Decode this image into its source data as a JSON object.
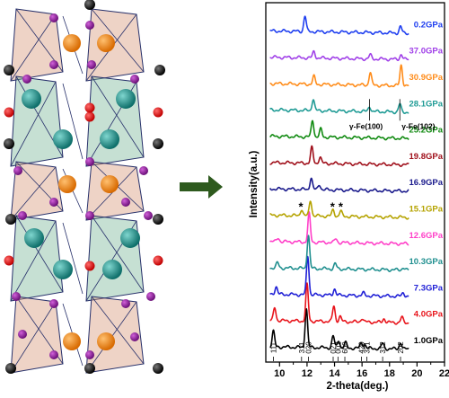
{
  "chart_data": {
    "type": "line",
    "xlabel": "2-theta(deg.)",
    "ylabel": "Intensity(a.u.)",
    "xlim": [
      9,
      22
    ],
    "x_ticks": [
      10,
      12,
      14,
      16,
      18,
      20,
      22
    ],
    "series": [
      {
        "name": "1.0GPa",
        "color": "#000000",
        "offset": 0,
        "peaks": [
          [
            9.55,
            12
          ],
          [
            11.95,
            30
          ],
          [
            13.9,
            9
          ],
          [
            14.3,
            6
          ],
          [
            14.8,
            4
          ],
          [
            15.95,
            4
          ],
          [
            16.2,
            3
          ],
          [
            17.5,
            4
          ],
          [
            18.8,
            5
          ]
        ]
      },
      {
        "name": "4.0GPa",
        "color": "#e8141b",
        "offset": 1,
        "peaks": [
          [
            9.65,
            10
          ],
          [
            12.0,
            28
          ],
          [
            13.95,
            12
          ],
          [
            14.4,
            4
          ],
          [
            16.0,
            3
          ],
          [
            17.6,
            3
          ],
          [
            18.9,
            4
          ]
        ]
      },
      {
        "name": "7.3GPa",
        "color": "#1f1fd6",
        "offset": 2,
        "peaks": [
          [
            9.75,
            6
          ],
          [
            12.05,
            30
          ],
          [
            14.0,
            5
          ],
          [
            16.1,
            2
          ],
          [
            19.0,
            3
          ]
        ]
      },
      {
        "name": "10.3GPa",
        "color": "#1f8f8f",
        "offset": 3,
        "peaks": [
          [
            9.85,
            4
          ],
          [
            12.1,
            26
          ],
          [
            14.05,
            4
          ],
          [
            19.0,
            2
          ]
        ]
      },
      {
        "name": "12.6GPa",
        "color": "#ff3fc8",
        "offset": 4,
        "peaks": [
          [
            9.9,
            3
          ],
          [
            12.15,
            22
          ],
          [
            14.1,
            3
          ]
        ]
      },
      {
        "name": "15.1GPa",
        "color": "#b5a300",
        "offset": 5,
        "peaks": [
          [
            11.6,
            5
          ],
          [
            12.25,
            12
          ],
          [
            13.9,
            5
          ],
          [
            14.45,
            4
          ]
        ]
      },
      {
        "name": "16.9GPa",
        "color": "#1a1a8c",
        "offset": 6,
        "peaks": [
          [
            12.3,
            9
          ],
          [
            12.9,
            4
          ]
        ]
      },
      {
        "name": "19.8GPa",
        "color": "#a0101b",
        "offset": 7,
        "peaks": [
          [
            12.35,
            12
          ],
          [
            12.95,
            5
          ]
        ]
      },
      {
        "name": "25.2GPa",
        "color": "#108a10",
        "offset": 8,
        "peaks": [
          [
            12.4,
            13
          ],
          [
            13.0,
            6
          ]
        ]
      },
      {
        "name": "28.1GPa",
        "color": "#1f9b95",
        "offset": 9,
        "peaks": [
          [
            12.45,
            9
          ],
          [
            16.55,
            4
          ],
          [
            18.75,
            6
          ]
        ]
      },
      {
        "name": "30.9GPa",
        "color": "#ff8c1a",
        "offset": 10,
        "peaks": [
          [
            12.5,
            6
          ],
          [
            16.6,
            10
          ],
          [
            18.85,
            16
          ]
        ]
      },
      {
        "name": "37.0GPa",
        "color": "#a040e8",
        "offset": 11,
        "peaks": [
          [
            12.5,
            5
          ],
          [
            16.6,
            3
          ],
          [
            18.85,
            4
          ]
        ]
      },
      {
        "name": "0.2GPa",
        "color": "#1f3ff0",
        "offset": 12,
        "peaks": [
          [
            11.85,
            12
          ],
          [
            18.8,
            5
          ]
        ]
      }
    ],
    "hkl_labels": [
      {
        "text": "111",
        "x": 9.55
      },
      {
        "text": "311",
        "x": 11.6
      },
      {
        "text": "020",
        "x": 12.1
      },
      {
        "text": "021",
        "x": 13.9
      },
      {
        "text": "002",
        "x": 14.25
      },
      {
        "text": "600",
        "x": 14.75
      },
      {
        "text": "420",
        "x": 15.95
      },
      {
        "text": "321",
        "x": 16.35
      },
      {
        "text": "312",
        "x": 17.5
      },
      {
        "text": "202",
        "x": 18.8
      }
    ],
    "annotations": [
      {
        "text": "γ-Fe(100)",
        "x": 16.55
      },
      {
        "text": "γ-Fe(102)",
        "x": 18.75
      }
    ],
    "stars": [
      {
        "text": "*",
        "x": 11.55
      },
      {
        "text": "*",
        "x": 13.85
      },
      {
        "text": "*",
        "x": 14.45
      }
    ]
  }
}
